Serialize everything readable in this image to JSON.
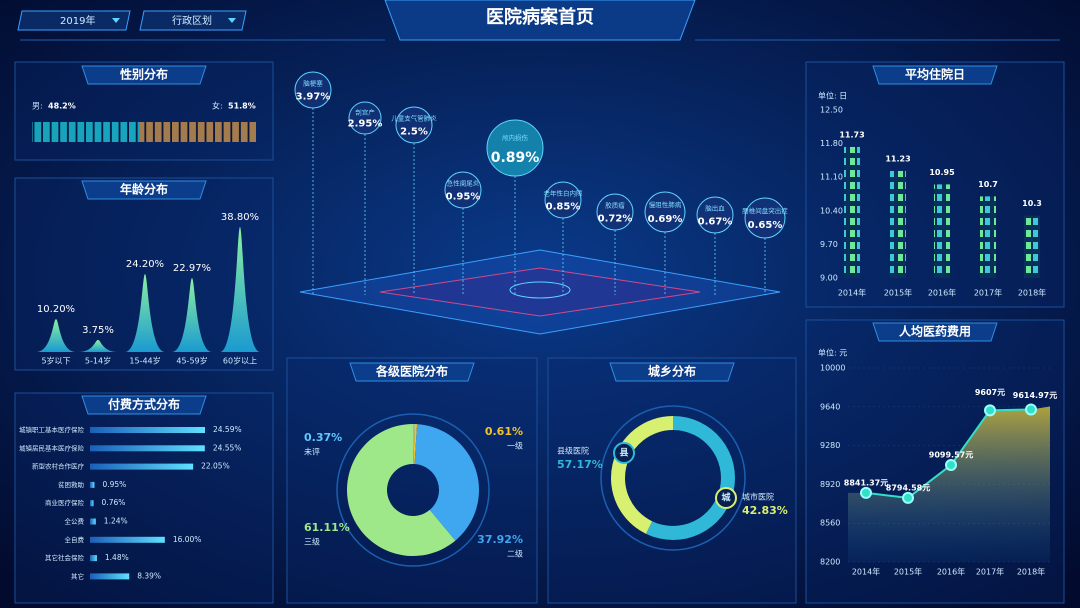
{
  "header": {
    "title": "医院病案首页",
    "filters": [
      "2019年",
      "行政区划"
    ]
  },
  "chart_data": [
    {
      "type": "gender",
      "title": "性别分布",
      "categories": [
        "男:",
        "女:"
      ],
      "values": [
        48.2,
        51.8
      ],
      "value_labels": [
        "48.2%",
        "51.8%"
      ],
      "colors": [
        "#1fd0e0",
        "#d99a48"
      ]
    },
    {
      "type": "peak",
      "title": "年龄分布",
      "categories": [
        "5岁以下",
        "5-14岁",
        "15-44岁",
        "45-59岁",
        "60岁以上"
      ],
      "values": [
        10.2,
        3.75,
        24.2,
        22.97,
        38.8
      ],
      "value_labels": [
        "10.20%",
        "3.75%",
        "24.20%",
        "22.97%",
        "38.80%"
      ]
    },
    {
      "type": "hbar",
      "title": "付费方式分布",
      "categories": [
        "城镇职工基本医疗保险",
        "城镇居民基本医疗保险",
        "新型农村合作医疗",
        "贫困救助",
        "商业医疗保险",
        "全公费",
        "全自费",
        "其它社会保险",
        "其它"
      ],
      "values": [
        24.59,
        24.55,
        22.05,
        0.95,
        0.76,
        1.24,
        16.0,
        1.48,
        8.39
      ],
      "value_labels": [
        "24.59%",
        "24.55%",
        "22.05%",
        "0.95%",
        "0.76%",
        "1.24%",
        "16.00%",
        "1.48%",
        "8.39%"
      ]
    },
    {
      "type": "bubble",
      "categories": [
        "脑梗塞",
        "剖宫产",
        "儿童支气管肺炎",
        "颅内损伤",
        "急性阑尾炎",
        "老年性白内障",
        "胶质瘤",
        "慢阻性肺病",
        "脑出血",
        "腰椎间盘突出症"
      ],
      "values": [
        3.97,
        2.95,
        2.5,
        0.89,
        0.95,
        0.85,
        0.72,
        0.69,
        0.67,
        0.65
      ],
      "value_labels": [
        "3.97%",
        "2.95%",
        "2.5%",
        "0.89%",
        "0.95%",
        "0.85%",
        "0.72%",
        "0.69%",
        "0.67%",
        "0.65%"
      ]
    },
    {
      "type": "bar",
      "title": "平均住院日",
      "y_unit": "单位: 日",
      "categories": [
        "2014年",
        "2015年",
        "2016年",
        "2017年",
        "2018年"
      ],
      "values": [
        11.73,
        11.23,
        10.95,
        10.7,
        10.3
      ],
      "ylim": [
        9.0,
        12.5
      ],
      "yticks": [
        {
          "value": 12.5,
          "label": "12.50"
        },
        {
          "value": 11.8,
          "label": "11.80"
        },
        {
          "value": 11.1,
          "label": "11.10"
        },
        {
          "value": 10.4,
          "label": "10.40"
        },
        {
          "value": 9.7,
          "label": "9.70"
        },
        {
          "value": 9.0,
          "label": "9.00"
        }
      ]
    },
    {
      "type": "donut",
      "title": "各级医院分布",
      "categories": [
        "未评",
        "一级",
        "二级",
        "三级"
      ],
      "values": [
        0.37,
        0.61,
        37.92,
        61.11
      ],
      "value_labels": [
        "0.37%",
        "0.61%",
        "37.92%",
        "61.11%"
      ],
      "colors": [
        "#5fc8ff",
        "#f2c230",
        "#3fa6f0",
        "#9ee88a"
      ]
    },
    {
      "type": "donut",
      "title": "城乡分布",
      "categories": [
        "县级医院",
        "城市医院"
      ],
      "badges": [
        "县",
        "城"
      ],
      "values": [
        57.17,
        42.83
      ],
      "value_labels": [
        "57.17%",
        "42.83%"
      ],
      "colors": [
        "#2fb8d8",
        "#d8f070"
      ]
    },
    {
      "type": "line",
      "title": "人均医药费用",
      "y_unit": "单位: 元",
      "categories": [
        "2014年",
        "2015年",
        "2016年",
        "2017年",
        "2018年"
      ],
      "values": [
        8841.37,
        8794.58,
        9099.57,
        9607,
        9614.97
      ],
      "value_labels": [
        "8841.37元",
        "8794.58元",
        "9099.57元",
        "9607元",
        "9614.97元"
      ],
      "ylim": [
        8200,
        10000
      ],
      "yticks": [
        10000,
        9640,
        9280,
        8920,
        8560,
        8200
      ],
      "color": "#32e0c8"
    }
  ]
}
